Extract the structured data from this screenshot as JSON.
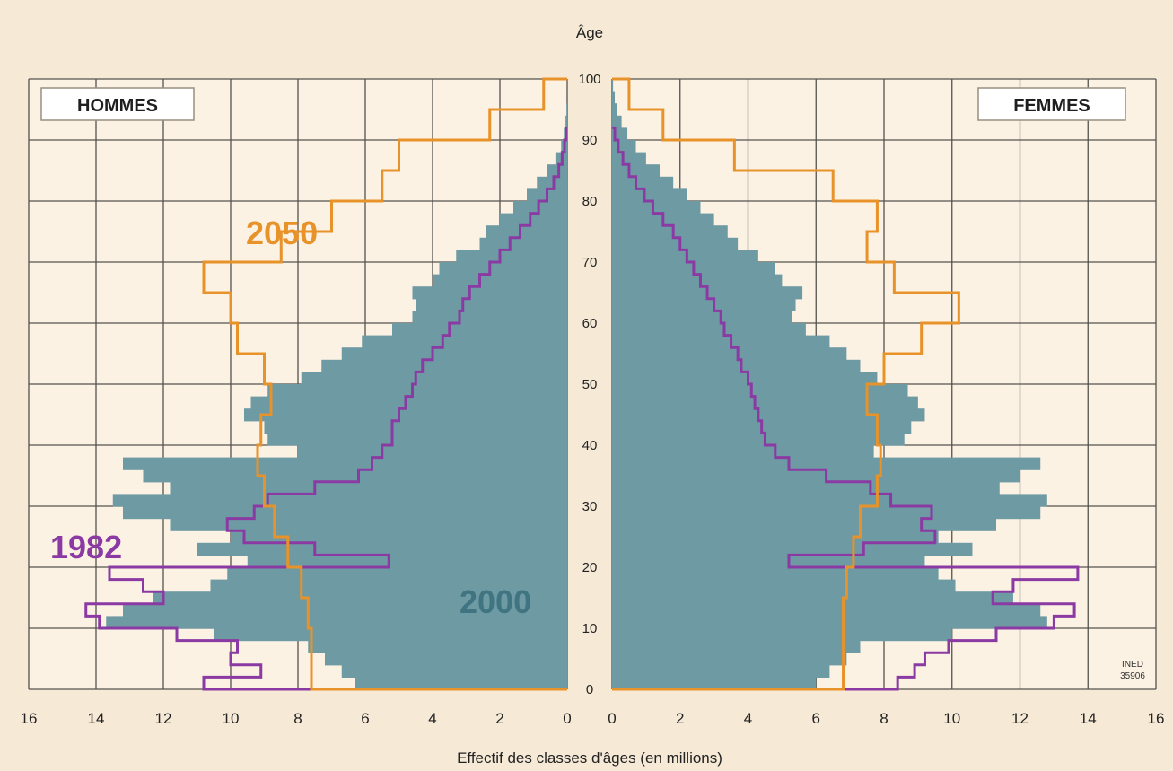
{
  "chart_data": {
    "type": "population-pyramid",
    "y_axis_label": "Âge",
    "x_axis_label": "Effectif des classes d'âges (en millions)",
    "left_label": "HOMMES",
    "right_label": "FEMMES",
    "source_note_line1": "INED",
    "source_note_line2": "35906",
    "xlim": [
      0,
      16
    ],
    "x_ticks": [
      "0",
      "2",
      "4",
      "6",
      "8",
      "10",
      "12",
      "14",
      "16"
    ],
    "ylim": [
      0,
      100
    ],
    "y_ticks": [
      "0",
      "10",
      "20",
      "30",
      "40",
      "50",
      "60",
      "70",
      "80",
      "90",
      "100"
    ],
    "colors": {
      "background": "#f6ead7",
      "panel": "#fbf2e4",
      "grid": "#55524d",
      "series_2000": "#6e9aa4",
      "series_1982": "#8a3aa2",
      "series_2050": "#e8922a"
    },
    "series": [
      {
        "name": "2000",
        "style": "filled-bars",
        "hommes": [
          [
            0,
            6.3
          ],
          [
            2,
            6.7
          ],
          [
            4,
            7.2
          ],
          [
            6,
            7.7
          ],
          [
            8,
            10.5
          ],
          [
            10,
            13.7
          ],
          [
            12,
            13.2
          ],
          [
            14,
            12.3
          ],
          [
            16,
            10.6
          ],
          [
            18,
            10.1
          ],
          [
            20,
            9.5
          ],
          [
            22,
            11.0
          ],
          [
            24,
            10.0
          ],
          [
            26,
            11.8
          ],
          [
            28,
            13.2
          ],
          [
            30,
            13.5
          ],
          [
            32,
            11.8
          ],
          [
            34,
            12.6
          ],
          [
            36,
            13.2
          ],
          [
            38,
            8.0
          ],
          [
            40,
            8.9
          ],
          [
            42,
            9.0
          ],
          [
            44,
            9.6
          ],
          [
            46,
            9.4
          ],
          [
            48,
            8.9
          ],
          [
            50,
            7.9
          ],
          [
            52,
            7.3
          ],
          [
            54,
            6.7
          ],
          [
            56,
            6.1
          ],
          [
            58,
            5.2
          ],
          [
            60,
            4.6
          ],
          [
            62,
            4.5
          ],
          [
            64,
            4.6
          ],
          [
            66,
            4.0
          ],
          [
            68,
            3.8
          ],
          [
            70,
            3.3
          ],
          [
            72,
            2.6
          ],
          [
            74,
            2.4
          ],
          [
            76,
            2.0
          ],
          [
            78,
            1.6
          ],
          [
            80,
            1.2
          ],
          [
            82,
            0.9
          ],
          [
            84,
            0.6
          ],
          [
            86,
            0.35
          ],
          [
            88,
            0.18
          ],
          [
            90,
            0.1
          ],
          [
            92,
            0.05
          ],
          [
            94,
            0.02
          ]
        ],
        "femmes": [
          [
            0,
            6.0
          ],
          [
            2,
            6.4
          ],
          [
            4,
            6.9
          ],
          [
            6,
            7.3
          ],
          [
            8,
            10.0
          ],
          [
            10,
            12.8
          ],
          [
            12,
            12.6
          ],
          [
            14,
            11.8
          ],
          [
            16,
            10.1
          ],
          [
            18,
            9.6
          ],
          [
            20,
            9.2
          ],
          [
            22,
            10.6
          ],
          [
            24,
            9.6
          ],
          [
            26,
            11.3
          ],
          [
            28,
            12.6
          ],
          [
            30,
            12.8
          ],
          [
            32,
            11.4
          ],
          [
            34,
            12.0
          ],
          [
            36,
            12.6
          ],
          [
            38,
            7.7
          ],
          [
            40,
            8.6
          ],
          [
            42,
            8.8
          ],
          [
            44,
            9.2
          ],
          [
            46,
            9.0
          ],
          [
            48,
            8.7
          ],
          [
            50,
            7.8
          ],
          [
            52,
            7.3
          ],
          [
            54,
            6.9
          ],
          [
            56,
            6.4
          ],
          [
            58,
            5.7
          ],
          [
            60,
            5.3
          ],
          [
            62,
            5.4
          ],
          [
            64,
            5.6
          ],
          [
            66,
            5.0
          ],
          [
            68,
            4.8
          ],
          [
            70,
            4.3
          ],
          [
            72,
            3.7
          ],
          [
            74,
            3.4
          ],
          [
            76,
            3.0
          ],
          [
            78,
            2.6
          ],
          [
            80,
            2.2
          ],
          [
            82,
            1.8
          ],
          [
            84,
            1.4
          ],
          [
            86,
            1.0
          ],
          [
            88,
            0.7
          ],
          [
            90,
            0.45
          ],
          [
            92,
            0.28
          ],
          [
            94,
            0.15
          ],
          [
            96,
            0.08
          ],
          [
            98,
            0.03
          ]
        ]
      },
      {
        "name": "1982",
        "style": "step-line",
        "hommes": [
          [
            0,
            10.8
          ],
          [
            2,
            9.1
          ],
          [
            4,
            10.0
          ],
          [
            6,
            9.8
          ],
          [
            8,
            11.6
          ],
          [
            10,
            13.9
          ],
          [
            12,
            14.3
          ],
          [
            14,
            12.0
          ],
          [
            16,
            12.6
          ],
          [
            18,
            13.6
          ],
          [
            20,
            5.3
          ],
          [
            22,
            7.5
          ],
          [
            24,
            9.6
          ],
          [
            26,
            10.1
          ],
          [
            28,
            9.3
          ],
          [
            30,
            8.9
          ],
          [
            32,
            7.5
          ],
          [
            34,
            6.2
          ],
          [
            36,
            5.8
          ],
          [
            38,
            5.5
          ],
          [
            40,
            5.2
          ],
          [
            42,
            5.2
          ],
          [
            44,
            5.0
          ],
          [
            46,
            4.8
          ],
          [
            48,
            4.6
          ],
          [
            50,
            4.5
          ],
          [
            52,
            4.3
          ],
          [
            54,
            4.0
          ],
          [
            56,
            3.7
          ],
          [
            58,
            3.5
          ],
          [
            60,
            3.2
          ],
          [
            62,
            3.1
          ],
          [
            64,
            2.9
          ],
          [
            66,
            2.6
          ],
          [
            68,
            2.3
          ],
          [
            70,
            2.0
          ],
          [
            72,
            1.7
          ],
          [
            74,
            1.4
          ],
          [
            76,
            1.1
          ],
          [
            78,
            0.85
          ],
          [
            80,
            0.6
          ],
          [
            82,
            0.4
          ],
          [
            84,
            0.25
          ],
          [
            86,
            0.15
          ],
          [
            88,
            0.08
          ],
          [
            90,
            0.03
          ]
        ],
        "femmes": [
          [
            0,
            8.4
          ],
          [
            2,
            8.9
          ],
          [
            4,
            9.2
          ],
          [
            6,
            9.9
          ],
          [
            8,
            11.3
          ],
          [
            10,
            13.0
          ],
          [
            12,
            13.6
          ],
          [
            14,
            11.2
          ],
          [
            16,
            11.8
          ],
          [
            18,
            13.7
          ],
          [
            20,
            5.2
          ],
          [
            22,
            7.4
          ],
          [
            24,
            9.5
          ],
          [
            26,
            9.1
          ],
          [
            28,
            9.4
          ],
          [
            30,
            8.2
          ],
          [
            32,
            7.6
          ],
          [
            34,
            6.3
          ],
          [
            36,
            5.2
          ],
          [
            38,
            4.8
          ],
          [
            40,
            4.5
          ],
          [
            42,
            4.4
          ],
          [
            44,
            4.3
          ],
          [
            46,
            4.2
          ],
          [
            48,
            4.1
          ],
          [
            50,
            4.0
          ],
          [
            52,
            3.8
          ],
          [
            54,
            3.7
          ],
          [
            56,
            3.5
          ],
          [
            58,
            3.3
          ],
          [
            60,
            3.2
          ],
          [
            62,
            3.0
          ],
          [
            64,
            2.8
          ],
          [
            66,
            2.6
          ],
          [
            68,
            2.4
          ],
          [
            70,
            2.2
          ],
          [
            72,
            2.0
          ],
          [
            74,
            1.8
          ],
          [
            76,
            1.5
          ],
          [
            78,
            1.2
          ],
          [
            80,
            0.95
          ],
          [
            82,
            0.7
          ],
          [
            84,
            0.5
          ],
          [
            86,
            0.32
          ],
          [
            88,
            0.18
          ],
          [
            90,
            0.08
          ]
        ]
      },
      {
        "name": "2050",
        "style": "step-line",
        "hommes": [
          [
            0,
            7.6
          ],
          [
            5,
            7.6
          ],
          [
            10,
            7.7
          ],
          [
            15,
            7.9
          ],
          [
            20,
            8.3
          ],
          [
            25,
            8.7
          ],
          [
            30,
            9.0
          ],
          [
            35,
            9.2
          ],
          [
            40,
            9.1
          ],
          [
            45,
            8.8
          ],
          [
            50,
            9.0
          ],
          [
            55,
            9.8
          ],
          [
            60,
            10.0
          ],
          [
            65,
            10.8
          ],
          [
            70,
            8.5
          ],
          [
            75,
            7.0
          ],
          [
            80,
            5.5
          ],
          [
            85,
            5.0
          ],
          [
            90,
            2.3
          ],
          [
            95,
            0.7
          ],
          [
            100,
            0.2
          ]
        ],
        "femmes": [
          [
            0,
            6.8
          ],
          [
            5,
            6.8
          ],
          [
            10,
            6.8
          ],
          [
            15,
            6.9
          ],
          [
            20,
            7.1
          ],
          [
            25,
            7.3
          ],
          [
            30,
            7.8
          ],
          [
            35,
            7.9
          ],
          [
            40,
            7.8
          ],
          [
            45,
            7.5
          ],
          [
            50,
            8.0
          ],
          [
            55,
            9.1
          ],
          [
            60,
            10.2
          ],
          [
            65,
            8.3
          ],
          [
            70,
            7.5
          ],
          [
            75,
            7.8
          ],
          [
            80,
            6.5
          ],
          [
            85,
            3.6
          ],
          [
            90,
            1.5
          ],
          [
            95,
            0.5
          ],
          [
            100,
            0.1
          ]
        ]
      }
    ]
  }
}
